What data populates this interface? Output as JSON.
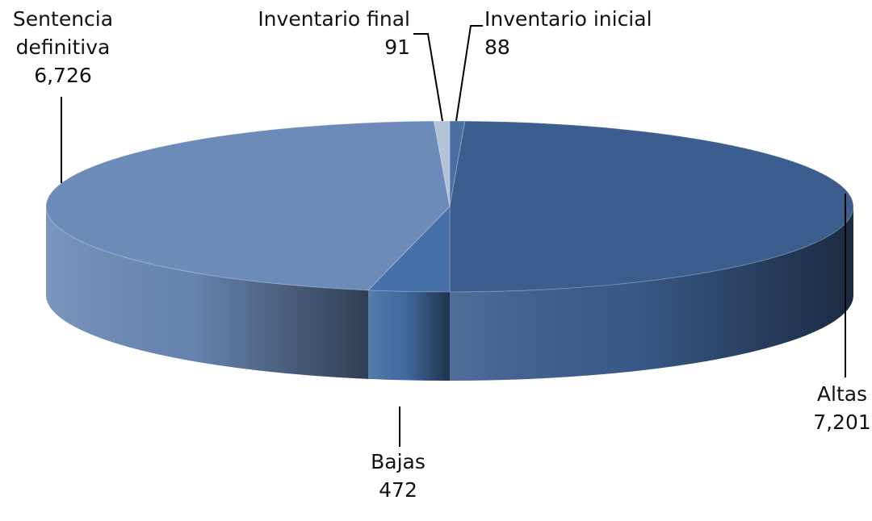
{
  "chart_data": {
    "type": "pie",
    "three_d": true,
    "legend": "none",
    "slices": [
      {
        "label_lines": [
          "Inventario inicial"
        ],
        "value": 88,
        "value_text": "88",
        "color": "#4a6fa5"
      },
      {
        "label_lines": [
          "Altas"
        ],
        "value": 7201,
        "value_text": "7,201",
        "color": "#3c5e8f"
      },
      {
        "label_lines": [
          "Bajas"
        ],
        "value": 472,
        "value_text": "472",
        "color": "#4670a7"
      },
      {
        "label_lines": [
          "Sentencia",
          "definitiva"
        ],
        "value": 6726,
        "value_text": "6,726",
        "color": "#6c8bb8"
      },
      {
        "label_lines": [
          "Inventario final"
        ],
        "value": 91,
        "value_text": "91",
        "color": "#b3c2d7"
      }
    ]
  }
}
